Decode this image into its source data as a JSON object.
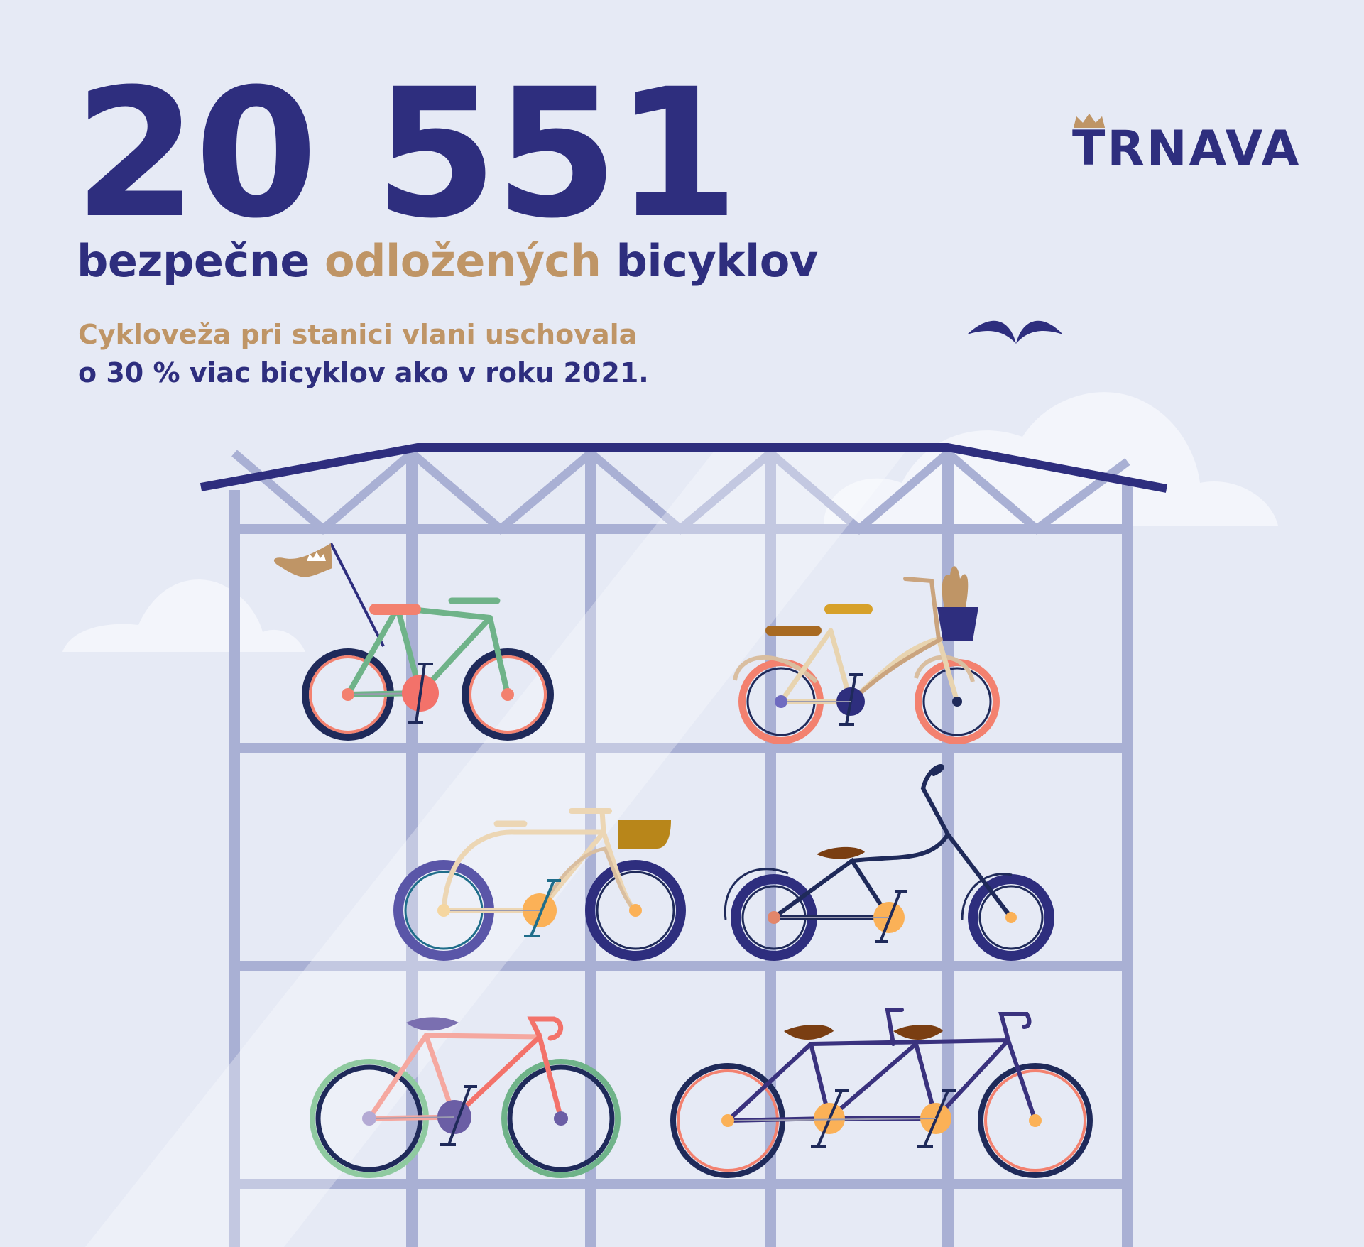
{
  "stat": {
    "number": "20 551",
    "headline_part1": "bezpečne ",
    "headline_accent": "odložených",
    "headline_part2": " bicyklov"
  },
  "description": {
    "line1": "Cykloveža pri stanici vlani uschovala",
    "line2": "o 30 % viac bicyklov ako v roku 2021."
  },
  "logo": {
    "text": "TRNAVA",
    "icon": "crown-icon"
  },
  "colors": {
    "background": "#e6eaf5",
    "navy": "#2e2e7e",
    "gold": "#bf9566",
    "frame": "#a9b0d4",
    "roof": "#2e2e7e"
  },
  "illustration": {
    "icons": [
      "bird-icon",
      "cloud-icon",
      "flag-icon",
      "basket-icon",
      "bicycle-icon"
    ]
  }
}
